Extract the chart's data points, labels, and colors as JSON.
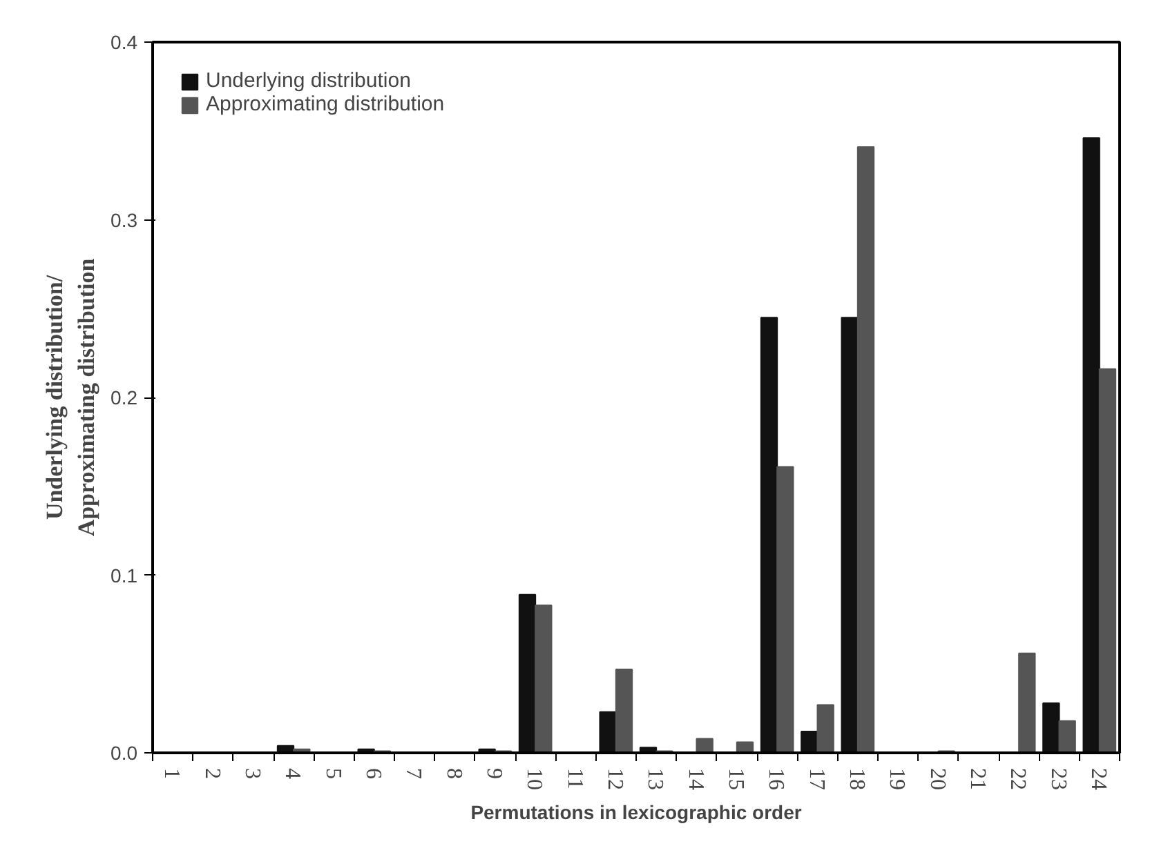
{
  "chart_data": {
    "type": "bar",
    "xlabel": "Permutations in lexicographic order",
    "ylabel": "Underlying distribution/\nApproximating distribution",
    "categories": [
      "1",
      "2",
      "3",
      "4",
      "5",
      "6",
      "7",
      "8",
      "9",
      "10",
      "11",
      "12",
      "13",
      "14",
      "15",
      "16",
      "17",
      "18",
      "19",
      "20",
      "21",
      "22",
      "23",
      "24"
    ],
    "series": [
      {
        "name": "Underlying distribution",
        "color": "#111111",
        "values": [
          0,
          0,
          0,
          0.004,
          0,
          0.002,
          0,
          0,
          0.002,
          0.089,
          0,
          0.023,
          0.003,
          0,
          0,
          0.245,
          0.012,
          0.245,
          0,
          0,
          0,
          0,
          0.028,
          0.346
        ]
      },
      {
        "name": "Approximating distribution",
        "color": "#555555",
        "values": [
          0,
          0,
          0,
          0.002,
          0,
          0.001,
          0,
          0,
          0.001,
          0.083,
          0,
          0.047,
          0.001,
          0.008,
          0.006,
          0.161,
          0.027,
          0.341,
          0,
          0.001,
          0,
          0.056,
          0.018,
          0.216
        ]
      }
    ],
    "ylim": [
      0,
      0.4
    ],
    "yticks": [
      {
        "value": 0,
        "label": "0.0"
      },
      0.1,
      0.2,
      0.3,
      0.4
    ],
    "grid": false,
    "legend": "top left"
  }
}
